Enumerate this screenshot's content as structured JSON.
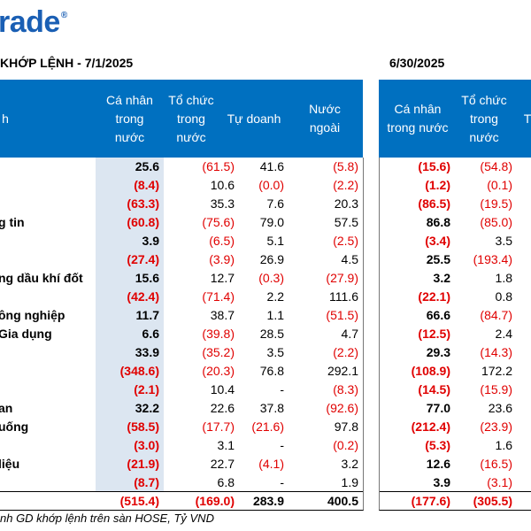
{
  "logo": {
    "text": "rade",
    "mark": "®"
  },
  "titles": {
    "left": "KHỚP LỆNH - 7/1/2025",
    "right": "6/30/2025"
  },
  "headers_left": [
    "h",
    "Cá nhân\ntrong\nnước",
    "Tổ chức\ntrong\nnước",
    "Tự doanh",
    "Nước\nngoài"
  ],
  "headers_right": [
    "Cá nhân\ntrong nước",
    "Tổ chức\ntrong\nnước",
    "T"
  ],
  "rows": [
    {
      "sector": "",
      "ca": "25.6",
      "to": "(61.5)",
      "tu": "41.6",
      "nn": "(5.8)",
      "ca2": "(15.6)",
      "to2": "(54.8)"
    },
    {
      "sector": "",
      "ca": "(8.4)",
      "to": "10.6",
      "tu": "(0.0)",
      "nn": "(2.2)",
      "ca2": "(1.2)",
      "to2": "(0.1)"
    },
    {
      "sector": "",
      "ca": "(63.3)",
      "to": "35.3",
      "tu": "7.6",
      "nn": "20.3",
      "ca2": "(86.5)",
      "to2": "(19.5)"
    },
    {
      "sector": "g tin",
      "ca": "(60.8)",
      "to": "(75.6)",
      "tu": "79.0",
      "nn": "57.5",
      "ca2": "86.8",
      "to2": "(85.0)"
    },
    {
      "sector": "",
      "ca": "3.9",
      "to": "(6.5)",
      "tu": "5.1",
      "nn": "(2.5)",
      "ca2": "(3.4)",
      "to2": "3.5"
    },
    {
      "sector": "",
      "ca": "(27.4)",
      "to": "(3.9)",
      "tu": "26.9",
      "nn": "4.5",
      "ca2": "25.5",
      "to2": "(193.4)"
    },
    {
      "sector": "ng dầu khí đốt",
      "ca": "15.6",
      "to": "12.7",
      "tu": "(0.3)",
      "nn": "(27.9)",
      "ca2": "3.2",
      "to2": "1.8"
    },
    {
      "sector": "",
      "ca": "(42.4)",
      "to": "(71.4)",
      "tu": "2.2",
      "nn": "111.6",
      "ca2": "(22.1)",
      "to2": "0.8"
    },
    {
      "sector": "ông nghiệp",
      "ca": "11.7",
      "to": "38.7",
      "tu": "1.1",
      "nn": "(51.5)",
      "ca2": "66.6",
      "to2": "(84.7)"
    },
    {
      "sector": "Gia dụng",
      "ca": "6.6",
      "to": "(39.8)",
      "tu": "28.5",
      "nn": "4.7",
      "ca2": "(12.5)",
      "to2": "2.4"
    },
    {
      "sector": "",
      "ca": "33.9",
      "to": "(35.2)",
      "tu": "3.5",
      "nn": "(2.2)",
      "ca2": "29.3",
      "to2": "(14.3)"
    },
    {
      "sector": "",
      "ca": "(348.6)",
      "to": "(20.3)",
      "tu": "76.8",
      "nn": "292.1",
      "ca2": "(108.9)",
      "to2": "172.2"
    },
    {
      "sector": "",
      "ca": "(2.1)",
      "to": "10.4",
      "tu": "-",
      "nn": "(8.3)",
      "ca2": "(14.5)",
      "to2": "(15.9)"
    },
    {
      "sector": "an",
      "ca": "32.2",
      "to": "22.6",
      "tu": "37.8",
      "nn": "(92.6)",
      "ca2": "77.0",
      "to2": "23.6"
    },
    {
      "sector": " uống",
      "ca": "(58.5)",
      "to": "(17.7)",
      "tu": "(21.6)",
      "nn": "97.8",
      "ca2": "(212.4)",
      "to2": "(23.9)"
    },
    {
      "sector": "",
      "ca": "(3.0)",
      "to": "3.1",
      "tu": "-",
      "nn": "(0.2)",
      "ca2": "(5.3)",
      "to2": "1.6"
    },
    {
      "sector": "liệu",
      "ca": "(21.9)",
      "to": "22.7",
      "tu": "(4.1)",
      "nn": "3.2",
      "ca2": "12.6",
      "to2": "(16.5)"
    },
    {
      "sector": "",
      "ca": "(8.7)",
      "to": "6.8",
      "tu": "-",
      "nn": "1.9",
      "ca2": "3.9",
      "to2": "(3.1)"
    }
  ],
  "total": {
    "ca": "(515.4)",
    "to": "(169.0)",
    "tu": "283.9",
    "nn": "400.5",
    "ca2": "(177.6)",
    "to2": "(305.5)"
  },
  "footnote": "nh GD khớp lệnh trên sàn HOSE, Tỷ VND",
  "colors": {
    "header_bg": "#0070c0",
    "negative": "#e00000",
    "highlight": "#dce6f1",
    "logo": "#1a5fb4"
  }
}
